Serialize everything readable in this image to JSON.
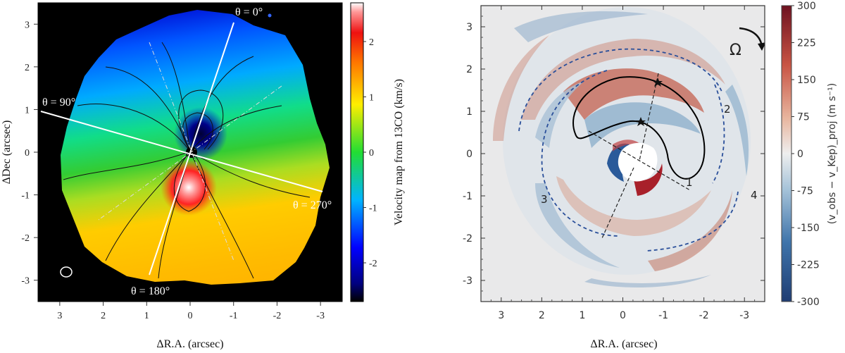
{
  "chart_data": [
    {
      "type": "heatmap",
      "title": "",
      "xlabel": "ΔR.A. (arcsec)",
      "ylabel": "ΔDec (arcsec)",
      "xlim": [
        3.5,
        -3.5
      ],
      "ylim": [
        -3.5,
        3.5
      ],
      "xticks": [
        "3",
        "2",
        "1",
        "0",
        "-1",
        "-2",
        "-3"
      ],
      "xtick_values": [
        3,
        2,
        1,
        0,
        -1,
        -2,
        -3
      ],
      "yticks": [
        "3",
        "2",
        "1",
        "0",
        "-1",
        "-2",
        "-3"
      ],
      "ytick_values": [
        3,
        2,
        1,
        0,
        -1,
        -2,
        -3
      ],
      "colorbar": {
        "label": "Velocity map from 13CO (km/s)",
        "range": [
          -2.7,
          2.7
        ],
        "ticks": [
          "2",
          "1",
          "0",
          "-1",
          "-2"
        ],
        "tick_values": [
          2,
          1,
          0,
          -1,
          -2
        ],
        "colormap": "jet"
      },
      "annotations": [
        {
          "text": "θ = 0°",
          "angle_deg": 0
        },
        {
          "text": "θ = 90°",
          "angle_deg": 90
        },
        {
          "text": "θ = 180°",
          "angle_deg": 180
        },
        {
          "text": "θ = 270°",
          "angle_deg": 270
        }
      ],
      "disk": {
        "major_axis_pa_deg": 18,
        "disk_radius_arcsec": 3.1,
        "beam": "ellipse, lower left"
      }
    },
    {
      "type": "heatmap",
      "title": "",
      "xlabel": "ΔR.A. (arcsec)",
      "ylabel": "",
      "xlim": [
        3.5,
        -3.5
      ],
      "ylim": [
        -3.5,
        3.5
      ],
      "xticks": [
        "3",
        "2",
        "1",
        "0",
        "-1",
        "-2",
        "-3"
      ],
      "xtick_values": [
        3,
        2,
        1,
        0,
        -1,
        -2,
        -3
      ],
      "yticks": [
        "3",
        "2",
        "1",
        "0",
        "-1",
        "-2",
        "-3"
      ],
      "ytick_values": [
        3,
        2,
        1,
        0,
        -1,
        -2,
        -3
      ],
      "colorbar": {
        "label": "(v_obs − v_Kep)_proj (m s⁻¹)",
        "range": [
          -300,
          300
        ],
        "ticks": [
          "300",
          "225",
          "150",
          "75",
          "0",
          "-75",
          "-150",
          "-225",
          "-300"
        ],
        "tick_values": [
          300,
          225,
          150,
          75,
          0,
          -75,
          -150,
          -225,
          -300
        ],
        "colormap": "RdBu_r"
      },
      "rotation_label": "Ω",
      "spiral_arm_labels": [
        "1",
        "2",
        "3",
        "4"
      ]
    }
  ]
}
